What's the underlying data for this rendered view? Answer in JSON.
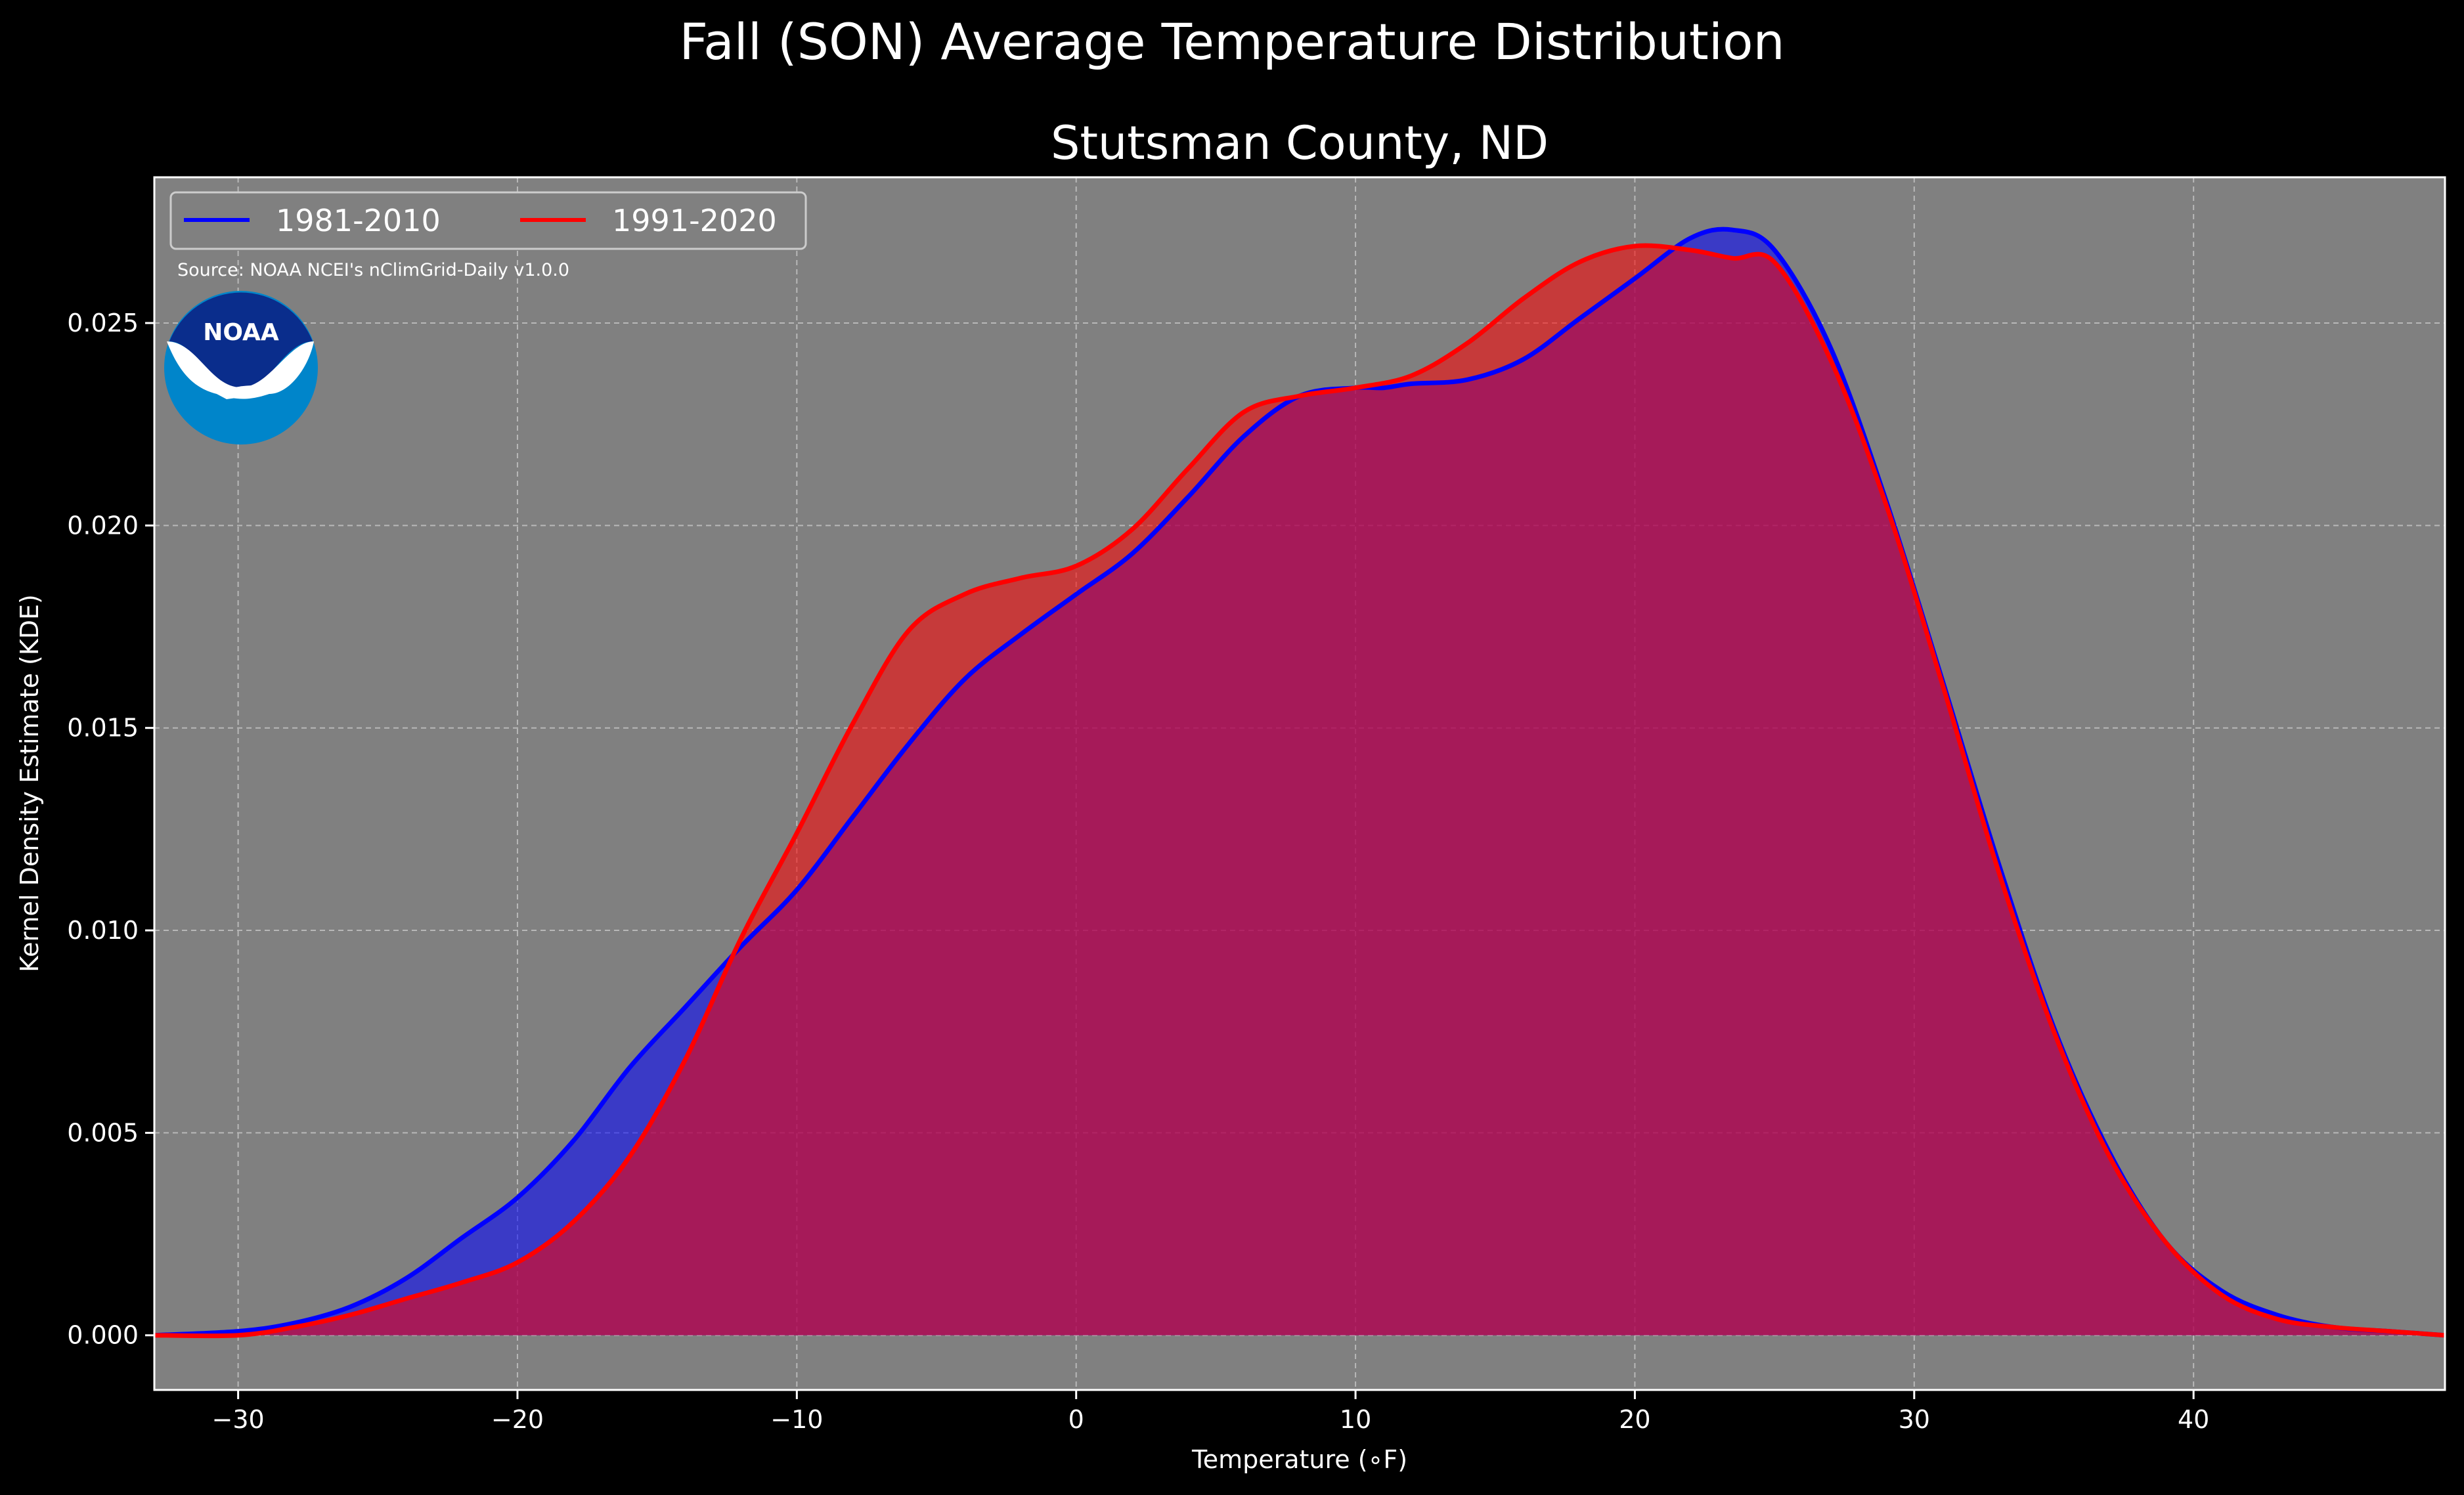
{
  "chart_data": {
    "type": "area",
    "title": "Fall (SON) Average Temperature Distribution",
    "subtitle": "Stutsman County, ND",
    "xlabel": "Temperature (∘F)",
    "ylabel": "Kernel Density Estimate (KDE)",
    "xlim": [
      -33,
      49
    ],
    "ylim": [
      -0.00135,
      0.0286
    ],
    "xticks": [
      -30,
      -20,
      -10,
      0,
      10,
      20,
      30,
      40
    ],
    "xtick_labels": [
      "−30",
      "−20",
      "−10",
      "0",
      "10",
      "20",
      "30",
      "40"
    ],
    "yticks": [
      0.0,
      0.005,
      0.01,
      0.015,
      0.02,
      0.025
    ],
    "ytick_labels": [
      "0.000",
      "0.005",
      "0.010",
      "0.015",
      "0.020",
      "0.025"
    ],
    "grid": true,
    "legend_position": "top-left",
    "plot_background": "#808080",
    "figure_background": "#000000",
    "annotation": "Source: NOAA NCEI's nClimGrid-Daily v1.0.0",
    "logo": {
      "text": "NOAA",
      "icon": "noaa-logo-icon",
      "colors": [
        "#0A2D8C",
        "#0085CA",
        "#FFFFFF"
      ]
    },
    "series": [
      {
        "name": "1981-2010",
        "color": "#0000FF",
        "fill": "#0000FF",
        "x": [
          -33,
          -30,
          -28,
          -26,
          -24,
          -22,
          -20,
          -18,
          -16,
          -14,
          -12,
          -10,
          -8,
          -6,
          -4,
          -2,
          0,
          2,
          4,
          6,
          8,
          10,
          11,
          12,
          14,
          16,
          18,
          20,
          22,
          23.5,
          25,
          27,
          29,
          31,
          33,
          35,
          37,
          39,
          41,
          43,
          45,
          47,
          49
        ],
        "y": [
          0.0,
          0.0001,
          0.0003,
          0.0007,
          0.0014,
          0.0024,
          0.0034,
          0.0048,
          0.0066,
          0.0081,
          0.0096,
          0.011,
          0.0128,
          0.0146,
          0.0162,
          0.0173,
          0.0183,
          0.0193,
          0.0207,
          0.0222,
          0.0232,
          0.0234,
          0.0234,
          0.0235,
          0.0236,
          0.0241,
          0.0251,
          0.0261,
          0.0271,
          0.0273,
          0.0268,
          0.0244,
          0.0206,
          0.0162,
          0.0117,
          0.0076,
          0.0045,
          0.0023,
          0.0011,
          0.0005,
          0.0002,
          0.0001,
          0.0
        ]
      },
      {
        "name": "1991-2020",
        "color": "#FF0000",
        "fill": "#FF0000",
        "x": [
          -33,
          -30,
          -28,
          -26,
          -24,
          -22,
          -20,
          -18,
          -16,
          -14,
          -12,
          -10,
          -8,
          -6,
          -4,
          -2,
          0,
          2,
          4,
          6,
          8,
          10,
          12,
          14,
          16,
          18,
          20,
          22,
          23.5,
          25,
          27,
          29,
          31,
          33,
          35,
          37,
          39,
          41,
          43,
          45,
          47,
          49
        ],
        "y": [
          0.0,
          0.0,
          0.0002,
          0.0005,
          0.0009,
          0.0013,
          0.0018,
          0.0028,
          0.0044,
          0.0068,
          0.0098,
          0.0124,
          0.0151,
          0.0174,
          0.0183,
          0.0187,
          0.019,
          0.0199,
          0.0214,
          0.0228,
          0.0232,
          0.0234,
          0.0237,
          0.0245,
          0.0256,
          0.0265,
          0.0269,
          0.0268,
          0.0266,
          0.0265,
          0.0241,
          0.0205,
          0.0161,
          0.0115,
          0.0075,
          0.0044,
          0.0023,
          0.001,
          0.0004,
          0.0002,
          0.0001,
          0.0
        ]
      }
    ]
  }
}
